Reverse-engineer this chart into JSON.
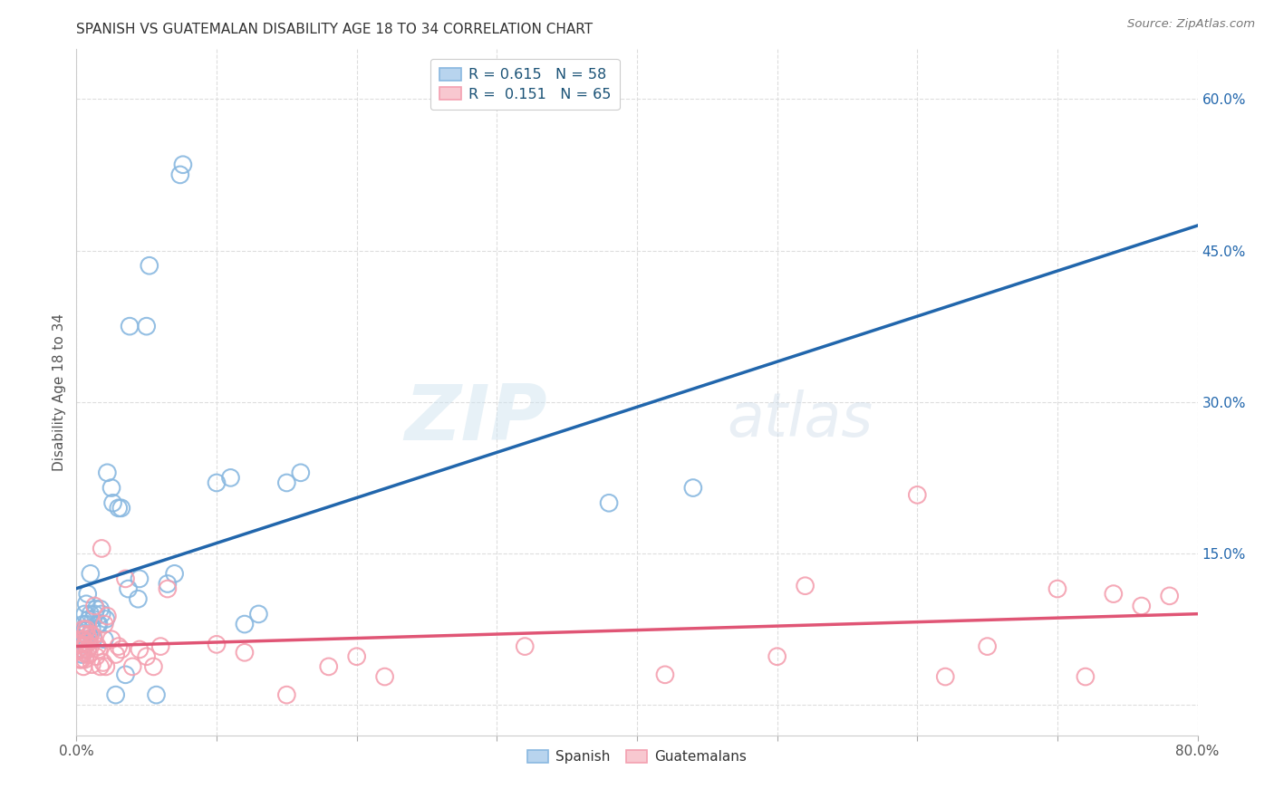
{
  "title": "SPANISH VS GUATEMALAN DISABILITY AGE 18 TO 34 CORRELATION CHART",
  "source": "Source: ZipAtlas.com",
  "ylabel": "Disability Age 18 to 34",
  "xlim": [
    0.0,
    0.8
  ],
  "ylim": [
    -0.03,
    0.65
  ],
  "grid_color": "#dddddd",
  "background_color": "#ffffff",
  "spanish_color": "#89b8e0",
  "guatemalan_color": "#f4a0b0",
  "spanish_line_color": "#2166ac",
  "guatemalan_line_color": "#e05575",
  "spanish_x": [
    0.002,
    0.003,
    0.004,
    0.004,
    0.005,
    0.005,
    0.005,
    0.006,
    0.006,
    0.006,
    0.007,
    0.007,
    0.007,
    0.008,
    0.008,
    0.008,
    0.009,
    0.009,
    0.01,
    0.01,
    0.01,
    0.011,
    0.012,
    0.012,
    0.013,
    0.014,
    0.015,
    0.016,
    0.017,
    0.018,
    0.02,
    0.021,
    0.022,
    0.025,
    0.026,
    0.028,
    0.03,
    0.032,
    0.035,
    0.037,
    0.038,
    0.044,
    0.045,
    0.05,
    0.052,
    0.057,
    0.065,
    0.07,
    0.074,
    0.076,
    0.1,
    0.11,
    0.12,
    0.13,
    0.15,
    0.16,
    0.38,
    0.44
  ],
  "spanish_y": [
    0.06,
    0.065,
    0.05,
    0.065,
    0.055,
    0.07,
    0.08,
    0.06,
    0.075,
    0.09,
    0.065,
    0.08,
    0.1,
    0.055,
    0.075,
    0.11,
    0.065,
    0.085,
    0.07,
    0.09,
    0.13,
    0.075,
    0.065,
    0.085,
    0.09,
    0.095,
    0.08,
    0.08,
    0.095,
    0.09,
    0.065,
    0.085,
    0.23,
    0.215,
    0.2,
    0.01,
    0.195,
    0.195,
    0.03,
    0.115,
    0.375,
    0.105,
    0.125,
    0.375,
    0.435,
    0.01,
    0.12,
    0.13,
    0.525,
    0.535,
    0.22,
    0.225,
    0.08,
    0.09,
    0.22,
    0.23,
    0.2,
    0.215
  ],
  "guatemalan_x": [
    0.001,
    0.002,
    0.002,
    0.003,
    0.003,
    0.004,
    0.004,
    0.004,
    0.005,
    0.005,
    0.005,
    0.005,
    0.006,
    0.006,
    0.006,
    0.007,
    0.007,
    0.007,
    0.008,
    0.008,
    0.009,
    0.009,
    0.01,
    0.01,
    0.011,
    0.012,
    0.013,
    0.014,
    0.015,
    0.016,
    0.017,
    0.018,
    0.019,
    0.02,
    0.021,
    0.022,
    0.025,
    0.028,
    0.03,
    0.032,
    0.035,
    0.04,
    0.045,
    0.05,
    0.055,
    0.06,
    0.065,
    0.1,
    0.12,
    0.15,
    0.18,
    0.2,
    0.22,
    0.32,
    0.42,
    0.5,
    0.52,
    0.6,
    0.62,
    0.65,
    0.7,
    0.72,
    0.74,
    0.76,
    0.78
  ],
  "guatemalan_y": [
    0.055,
    0.045,
    0.06,
    0.045,
    0.06,
    0.045,
    0.055,
    0.065,
    0.038,
    0.052,
    0.065,
    0.075,
    0.045,
    0.058,
    0.07,
    0.05,
    0.062,
    0.075,
    0.055,
    0.068,
    0.05,
    0.065,
    0.058,
    0.07,
    0.04,
    0.068,
    0.098,
    0.048,
    0.058,
    0.055,
    0.038,
    0.155,
    0.042,
    0.08,
    0.038,
    0.088,
    0.065,
    0.05,
    0.058,
    0.055,
    0.125,
    0.038,
    0.055,
    0.048,
    0.038,
    0.058,
    0.115,
    0.06,
    0.052,
    0.01,
    0.038,
    0.048,
    0.028,
    0.058,
    0.03,
    0.048,
    0.118,
    0.208,
    0.028,
    0.058,
    0.115,
    0.028,
    0.11,
    0.098,
    0.108
  ],
  "watermark_zip": "ZIP",
  "watermark_atlas": "atlas",
  "legend_r1": "R = 0.615",
  "legend_n1": "N = 58",
  "legend_r2": "R =  0.151",
  "legend_n2": "N = 65"
}
